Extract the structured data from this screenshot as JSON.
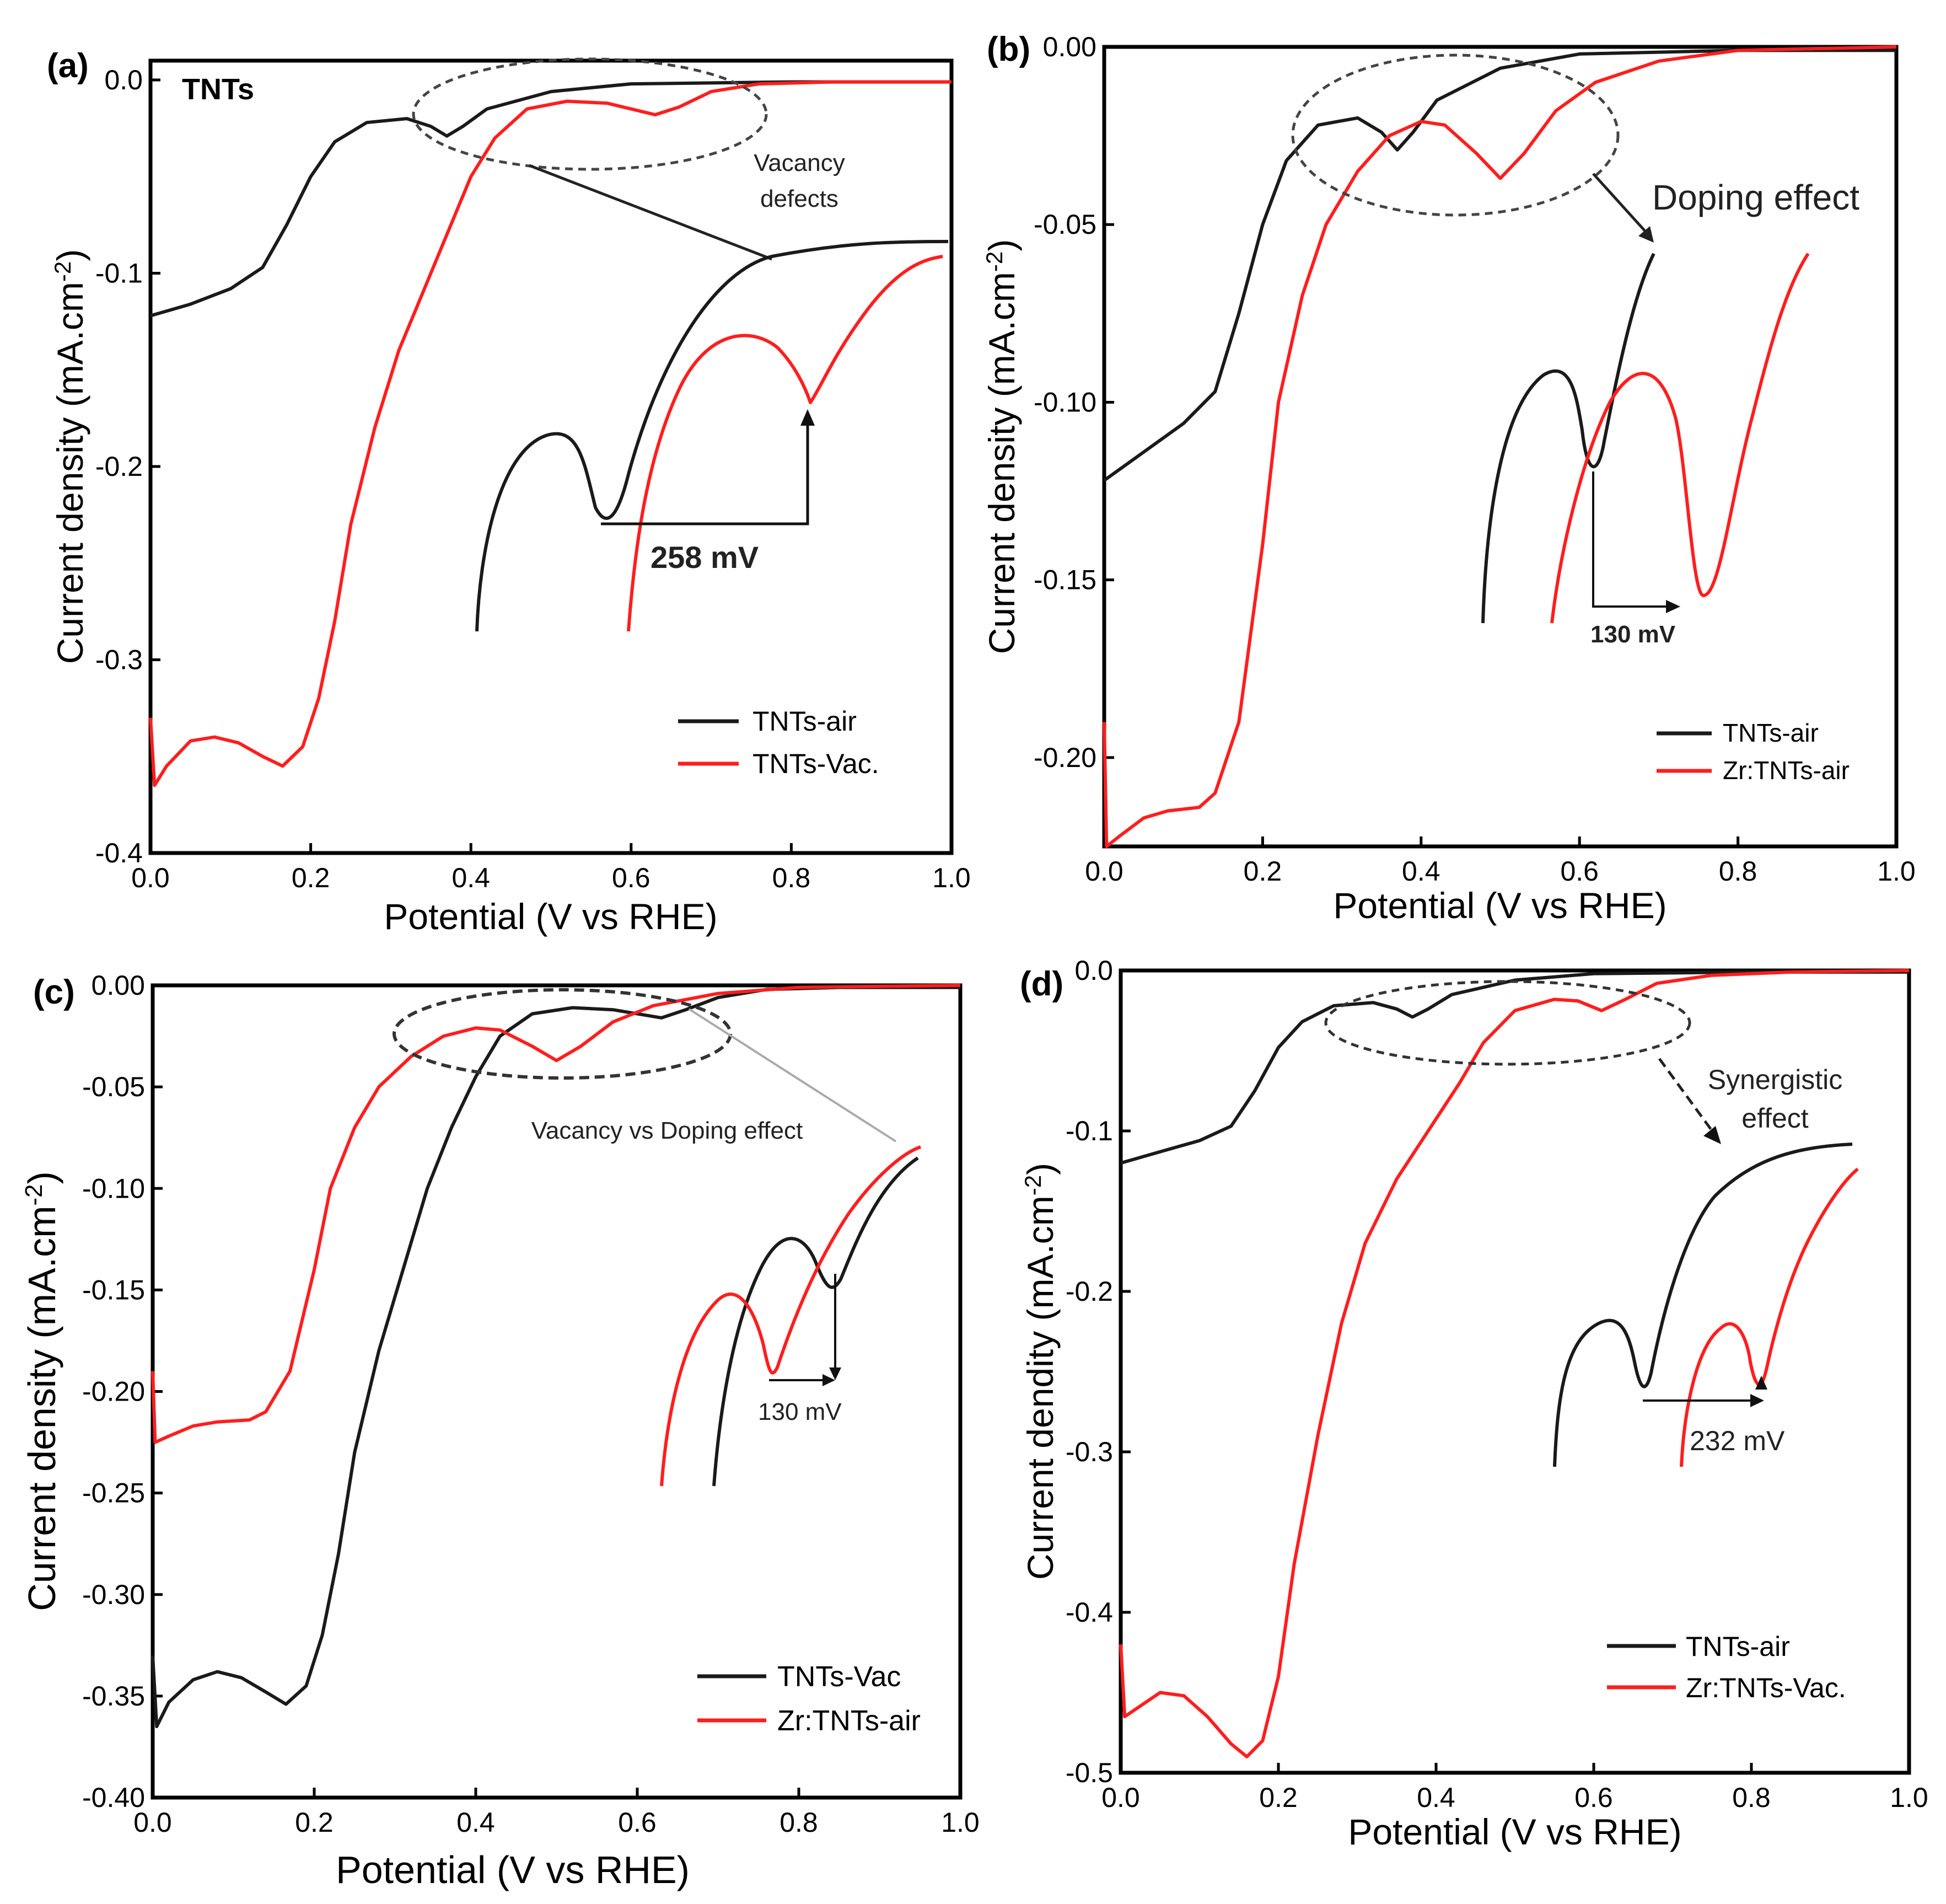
{
  "colors": {
    "series1": "#1a1a1a",
    "series2": "#ff1e1e",
    "ellipse": "#444444"
  },
  "chart_data": [
    {
      "type": "line",
      "panel_label": "(a)",
      "corner_label": "TNTs",
      "xlabel": "Potential (V vs RHE)",
      "ylabel": "Current density (mA.cm",
      "ylabel_sup": "-2",
      "ylabel_close": ")",
      "xlim": [
        0.0,
        1.0
      ],
      "ylim": [
        -0.4,
        0.01
      ],
      "xticks": [
        "0.0",
        "0.2",
        "0.4",
        "0.6",
        "0.8",
        "1.0"
      ],
      "xtick_values": [
        0.0,
        0.2,
        0.4,
        0.6,
        0.8,
        1.0
      ],
      "yticks": [
        "0.0",
        "-0.1",
        "-0.2",
        "-0.3",
        "-0.4"
      ],
      "ytick_values": [
        0.0,
        -0.1,
        -0.2,
        -0.3,
        -0.4
      ],
      "series": [
        {
          "name": "TNTs-air",
          "color": "#1a1a1a",
          "points": [
            [
              0,
              -0.122
            ],
            [
              0.05,
              -0.116
            ],
            [
              0.1,
              -0.108
            ],
            [
              0.14,
              -0.097
            ],
            [
              0.17,
              -0.075
            ],
            [
              0.2,
              -0.05
            ],
            [
              0.23,
              -0.032
            ],
            [
              0.27,
              -0.022
            ],
            [
              0.32,
              -0.02
            ],
            [
              0.35,
              -0.024
            ],
            [
              0.37,
              -0.029
            ],
            [
              0.39,
              -0.024
            ],
            [
              0.42,
              -0.015
            ],
            [
              0.5,
              -0.006
            ],
            [
              0.6,
              -0.002
            ],
            [
              0.8,
              -0.001
            ],
            [
              1.0,
              -0.001
            ]
          ]
        },
        {
          "name": "TNTs-Vac.",
          "color": "#ff1e1e",
          "points": [
            [
              0,
              -0.33
            ],
            [
              0.005,
              -0.365
            ],
            [
              0.02,
              -0.355
            ],
            [
              0.05,
              -0.342
            ],
            [
              0.08,
              -0.34
            ],
            [
              0.11,
              -0.343
            ],
            [
              0.14,
              -0.35
            ],
            [
              0.165,
              -0.355
            ],
            [
              0.19,
              -0.345
            ],
            [
              0.21,
              -0.32
            ],
            [
              0.23,
              -0.28
            ],
            [
              0.25,
              -0.23
            ],
            [
              0.28,
              -0.18
            ],
            [
              0.31,
              -0.14
            ],
            [
              0.34,
              -0.11
            ],
            [
              0.37,
              -0.08
            ],
            [
              0.4,
              -0.05
            ],
            [
              0.43,
              -0.03
            ],
            [
              0.47,
              -0.015
            ],
            [
              0.52,
              -0.011
            ],
            [
              0.57,
              -0.012
            ],
            [
              0.6,
              -0.015
            ],
            [
              0.63,
              -0.018
            ],
            [
              0.66,
              -0.014
            ],
            [
              0.7,
              -0.006
            ],
            [
              0.76,
              -0.002
            ],
            [
              0.85,
              -0.001
            ],
            [
              1.0,
              -0.001
            ]
          ]
        }
      ],
      "legend": [
        "TNTs-air",
        "TNTs-Vac."
      ],
      "legend_position": "bottom-right",
      "annotations": {
        "ellipse_label_lines": [
          "Vacancy",
          "defects"
        ],
        "shift_label": "258 mV"
      }
    },
    {
      "type": "line",
      "panel_label": "(b)",
      "corner_label": "",
      "xlabel": "Potential (V vs RHE)",
      "ylabel": "Current density (mA.cm",
      "ylabel_sup": "-2",
      "ylabel_close": ")",
      "xlim": [
        0.0,
        1.0
      ],
      "ylim": [
        -0.225,
        0.0
      ],
      "xticks": [
        "0.0",
        "0.2",
        "0.4",
        "0.6",
        "0.8",
        "1.0"
      ],
      "xtick_values": [
        0.0,
        0.2,
        0.4,
        0.6,
        0.8,
        1.0
      ],
      "yticks": [
        "0.00",
        "-0.05",
        "-0.10",
        "-0.15",
        "-0.20"
      ],
      "ytick_values": [
        0.0,
        -0.05,
        -0.1,
        -0.15,
        -0.2
      ],
      "series": [
        {
          "name": "TNTs-air",
          "color": "#1a1a1a",
          "points": [
            [
              0,
              -0.122
            ],
            [
              0.05,
              -0.114
            ],
            [
              0.1,
              -0.106
            ],
            [
              0.14,
              -0.097
            ],
            [
              0.17,
              -0.075
            ],
            [
              0.2,
              -0.05
            ],
            [
              0.23,
              -0.032
            ],
            [
              0.27,
              -0.022
            ],
            [
              0.32,
              -0.02
            ],
            [
              0.35,
              -0.024
            ],
            [
              0.37,
              -0.029
            ],
            [
              0.39,
              -0.024
            ],
            [
              0.42,
              -0.015
            ],
            [
              0.5,
              -0.006
            ],
            [
              0.6,
              -0.002
            ],
            [
              0.8,
              -0.001
            ],
            [
              1.0,
              -0.001
            ]
          ]
        },
        {
          "name": "Zr:TNTs-air",
          "color": "#ff1e1e",
          "points": [
            [
              0,
              -0.19
            ],
            [
              0.003,
              -0.225
            ],
            [
              0.02,
              -0.222
            ],
            [
              0.05,
              -0.217
            ],
            [
              0.08,
              -0.215
            ],
            [
              0.12,
              -0.214
            ],
            [
              0.14,
              -0.21
            ],
            [
              0.17,
              -0.19
            ],
            [
              0.2,
              -0.14
            ],
            [
              0.22,
              -0.1
            ],
            [
              0.25,
              -0.07
            ],
            [
              0.28,
              -0.05
            ],
            [
              0.32,
              -0.035
            ],
            [
              0.36,
              -0.025
            ],
            [
              0.4,
              -0.021
            ],
            [
              0.43,
              -0.022
            ],
            [
              0.47,
              -0.03
            ],
            [
              0.5,
              -0.037
            ],
            [
              0.53,
              -0.03
            ],
            [
              0.57,
              -0.018
            ],
            [
              0.62,
              -0.01
            ],
            [
              0.7,
              -0.004
            ],
            [
              0.8,
              -0.001
            ],
            [
              1.0,
              0.0
            ]
          ]
        }
      ],
      "legend": [
        "TNTs-air",
        "Zr:TNTs-air"
      ],
      "legend_position": "bottom-right",
      "annotations": {
        "ellipse_label_lines": [
          "Doping effect"
        ],
        "shift_label": "130 mV"
      }
    },
    {
      "type": "line",
      "panel_label": "(c)",
      "corner_label": "",
      "xlabel": "Potential (V vs RHE)",
      "ylabel": "Current density (mA.cm",
      "ylabel_sup": "-2",
      "ylabel_close": ")",
      "xlim": [
        0.0,
        1.0
      ],
      "ylim": [
        -0.4,
        0.0
      ],
      "xticks": [
        "0.0",
        "0.2",
        "0.4",
        "0.6",
        "0.8",
        "1.0"
      ],
      "xtick_values": [
        0.0,
        0.2,
        0.4,
        0.6,
        0.8,
        1.0
      ],
      "yticks": [
        "0.00",
        "-0.05",
        "-0.10",
        "-0.15",
        "-0.20",
        "-0.25",
        "-0.30",
        "-0.35",
        "-0.40"
      ],
      "ytick_values": [
        0.0,
        -0.05,
        -0.1,
        -0.15,
        -0.2,
        -0.25,
        -0.3,
        -0.35,
        -0.4
      ],
      "series": [
        {
          "name": "TNTs-Vac",
          "color": "#1a1a1a",
          "points": [
            [
              0,
              -0.33
            ],
            [
              0.005,
              -0.365
            ],
            [
              0.02,
              -0.353
            ],
            [
              0.05,
              -0.342
            ],
            [
              0.08,
              -0.338
            ],
            [
              0.11,
              -0.341
            ],
            [
              0.14,
              -0.348
            ],
            [
              0.165,
              -0.354
            ],
            [
              0.19,
              -0.345
            ],
            [
              0.21,
              -0.32
            ],
            [
              0.23,
              -0.28
            ],
            [
              0.25,
              -0.23
            ],
            [
              0.28,
              -0.18
            ],
            [
              0.31,
              -0.14
            ],
            [
              0.34,
              -0.1
            ],
            [
              0.37,
              -0.07
            ],
            [
              0.4,
              -0.045
            ],
            [
              0.43,
              -0.025
            ],
            [
              0.47,
              -0.014
            ],
            [
              0.52,
              -0.011
            ],
            [
              0.57,
              -0.012
            ],
            [
              0.6,
              -0.014
            ],
            [
              0.63,
              -0.016
            ],
            [
              0.66,
              -0.012
            ],
            [
              0.7,
              -0.006
            ],
            [
              0.76,
              -0.002
            ],
            [
              0.85,
              -0.001
            ],
            [
              1.0,
              -0.001
            ]
          ]
        },
        {
          "name": "Zr:TNTs-air",
          "color": "#ff1e1e",
          "points": [
            [
              0,
              -0.19
            ],
            [
              0.003,
              -0.225
            ],
            [
              0.02,
              -0.222
            ],
            [
              0.05,
              -0.217
            ],
            [
              0.08,
              -0.215
            ],
            [
              0.12,
              -0.214
            ],
            [
              0.14,
              -0.21
            ],
            [
              0.17,
              -0.19
            ],
            [
              0.2,
              -0.14
            ],
            [
              0.22,
              -0.1
            ],
            [
              0.25,
              -0.07
            ],
            [
              0.28,
              -0.05
            ],
            [
              0.32,
              -0.035
            ],
            [
              0.36,
              -0.025
            ],
            [
              0.4,
              -0.021
            ],
            [
              0.43,
              -0.022
            ],
            [
              0.47,
              -0.03
            ],
            [
              0.5,
              -0.037
            ],
            [
              0.53,
              -0.03
            ],
            [
              0.57,
              -0.018
            ],
            [
              0.62,
              -0.01
            ],
            [
              0.7,
              -0.004
            ],
            [
              0.8,
              -0.001
            ],
            [
              1.0,
              0.0
            ]
          ]
        }
      ],
      "legend": [
        "TNTs-Vac",
        "Zr:TNTs-air"
      ],
      "legend_position": "bottom-right",
      "annotations": {
        "ellipse_label_lines": [
          "Vacancy vs Doping effect"
        ],
        "shift_label": "130 mV"
      }
    },
    {
      "type": "line",
      "panel_label": "(d)",
      "corner_label": "",
      "xlabel": "Potential (V vs RHE)",
      "ylabel": "Current dendity (mA.cm",
      "ylabel_sup": "-2",
      "ylabel_close": ")",
      "xlim": [
        0.0,
        1.0
      ],
      "ylim": [
        -0.5,
        0.0
      ],
      "xticks": [
        "0.0",
        "0.2",
        "0.4",
        "0.6",
        "0.8",
        "1.0"
      ],
      "xtick_values": [
        0.0,
        0.2,
        0.4,
        0.6,
        0.8,
        1.0
      ],
      "yticks": [
        "0.0",
        "-0.1",
        "-0.2",
        "-0.3",
        "-0.4",
        "-0.5"
      ],
      "ytick_values": [
        0.0,
        -0.1,
        -0.2,
        -0.3,
        -0.4,
        -0.5
      ],
      "series": [
        {
          "name": "TNTs-air",
          "color": "#1a1a1a",
          "points": [
            [
              0,
              -0.12
            ],
            [
              0.05,
              -0.113
            ],
            [
              0.1,
              -0.106
            ],
            [
              0.14,
              -0.097
            ],
            [
              0.17,
              -0.075
            ],
            [
              0.2,
              -0.048
            ],
            [
              0.23,
              -0.032
            ],
            [
              0.27,
              -0.022
            ],
            [
              0.32,
              -0.02
            ],
            [
              0.35,
              -0.024
            ],
            [
              0.37,
              -0.029
            ],
            [
              0.39,
              -0.024
            ],
            [
              0.42,
              -0.015
            ],
            [
              0.5,
              -0.006
            ],
            [
              0.6,
              -0.002
            ],
            [
              0.8,
              -0.001
            ],
            [
              1.0,
              -0.001
            ]
          ]
        },
        {
          "name": "Zr:TNTs-Vac.",
          "color": "#ff1e1e",
          "points": [
            [
              0,
              -0.42
            ],
            [
              0.005,
              -0.465
            ],
            [
              0.02,
              -0.46
            ],
            [
              0.05,
              -0.45
            ],
            [
              0.08,
              -0.452
            ],
            [
              0.11,
              -0.465
            ],
            [
              0.14,
              -0.482
            ],
            [
              0.16,
              -0.49
            ],
            [
              0.18,
              -0.48
            ],
            [
              0.2,
              -0.44
            ],
            [
              0.22,
              -0.37
            ],
            [
              0.25,
              -0.29
            ],
            [
              0.28,
              -0.22
            ],
            [
              0.31,
              -0.17
            ],
            [
              0.35,
              -0.13
            ],
            [
              0.39,
              -0.1
            ],
            [
              0.43,
              -0.07
            ],
            [
              0.46,
              -0.045
            ],
            [
              0.5,
              -0.025
            ],
            [
              0.55,
              -0.018
            ],
            [
              0.58,
              -0.019
            ],
            [
              0.61,
              -0.025
            ],
            [
              0.64,
              -0.018
            ],
            [
              0.68,
              -0.008
            ],
            [
              0.75,
              -0.003
            ],
            [
              0.85,
              -0.001
            ],
            [
              1.0,
              0.0
            ]
          ]
        }
      ],
      "legend": [
        "TNTs-air",
        "Zr:TNTs-Vac."
      ],
      "legend_position": "bottom-right",
      "annotations": {
        "ellipse_label_lines": [
          "Synergistic",
          "effect"
        ],
        "shift_label": "232 mV"
      }
    }
  ]
}
